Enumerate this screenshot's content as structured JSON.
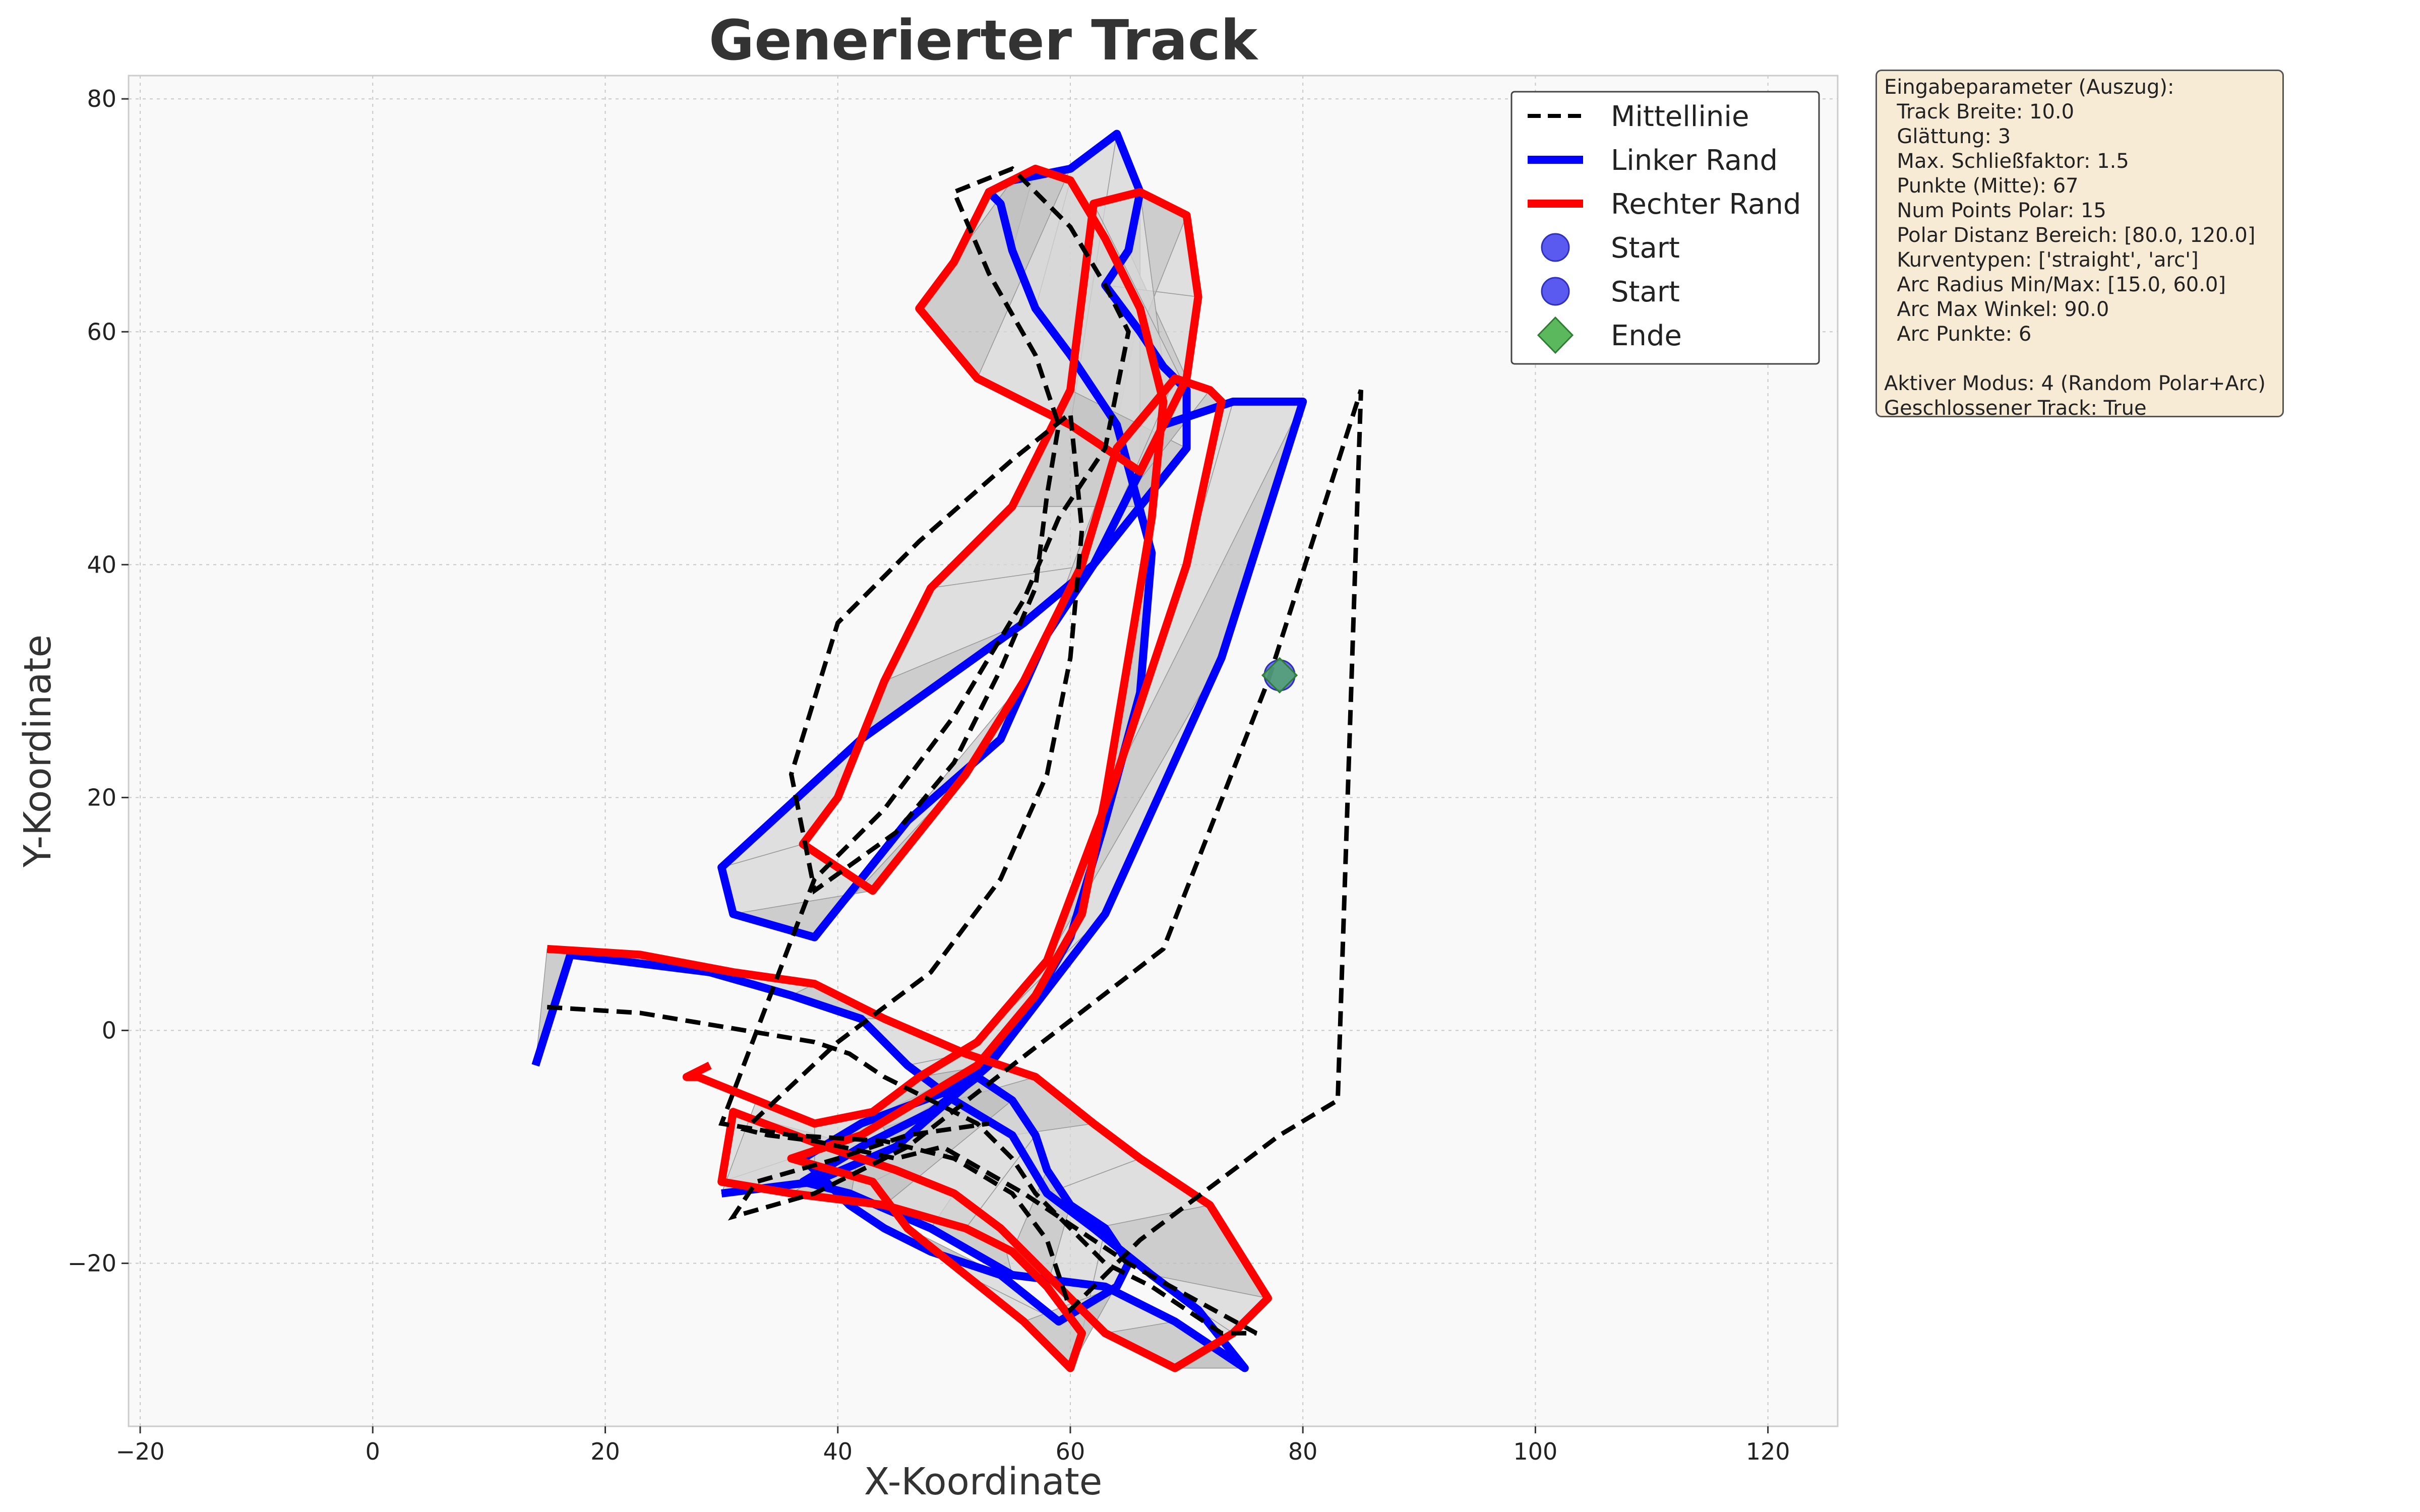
{
  "chart_data": {
    "type": "line",
    "title": "Generierter Track",
    "xlabel": "X-Koordinate",
    "ylabel": "Y-Koordinate",
    "xlim": [
      -21,
      126
    ],
    "ylim": [
      -34,
      82
    ],
    "xticks": [
      -20,
      0,
      20,
      40,
      60,
      80,
      100,
      120
    ],
    "yticks": [
      -20,
      0,
      20,
      40,
      60,
      80
    ],
    "grid": true,
    "legend_position": "top-right",
    "legend": [
      "Mittellinie",
      "Linker Rand",
      "Rechter Rand",
      "Start",
      "Start",
      "Ende"
    ],
    "colors": {
      "center": "#000000",
      "left": "#0000ff",
      "right": "#ff0000",
      "start": "#5a5af0",
      "end": "#4caf50",
      "track_fill": "#cfcfcf",
      "plot_bg": "#f9f9f9"
    },
    "series": [
      {
        "name": "Mittellinie",
        "x": [
          15,
          23,
          29,
          35,
          38,
          41,
          44,
          48,
          52,
          55,
          57,
          60,
          63,
          67,
          70,
          73,
          76,
          65,
          56,
          49,
          45,
          38,
          34,
          32,
          40,
          48,
          54,
          58,
          60,
          61,
          60,
          55,
          47,
          40,
          36,
          38,
          45,
          50,
          54,
          57,
          58,
          59,
          57,
          53,
          50,
          55,
          60,
          63,
          65,
          64,
          63,
          59,
          56,
          50,
          44,
          38,
          30,
          36,
          44,
          50,
          55,
          58,
          60,
          63,
          66,
          70,
          74,
          78,
          83,
          85,
          77,
          68,
          55,
          46,
          42,
          38,
          31,
          33,
          40,
          46,
          53
        ],
        "y": [
          2,
          1.5,
          0.5,
          -0.5,
          -1,
          -2,
          -4,
          -6,
          -8,
          -11,
          -14,
          -17,
          -20,
          -22,
          -24,
          -26,
          -26,
          -20,
          -14,
          -10,
          -11,
          -9.5,
          -9,
          -8.5,
          -1,
          5,
          13,
          22,
          32,
          43,
          53,
          49,
          42,
          35,
          22,
          12,
          17,
          23,
          31,
          38,
          46,
          52,
          58,
          65,
          72,
          74,
          69,
          64,
          60,
          55,
          50,
          44,
          37,
          27,
          19,
          13,
          -8,
          -9,
          -9.5,
          -11,
          -14,
          -18,
          -24,
          -21,
          -18,
          -15,
          -12,
          -9,
          -6,
          55,
          30,
          7,
          -3,
          -10,
          -12,
          -14,
          -16,
          -13,
          -11,
          -9,
          -8
        ]
      },
      {
        "name": "Linker Rand",
        "x": [
          14,
          17,
          29,
          36,
          42,
          46,
          50,
          55,
          58,
          62,
          67,
          71,
          75,
          69,
          63,
          55,
          48,
          41,
          37,
          42,
          48,
          52,
          55,
          57,
          58,
          60,
          63,
          65,
          64,
          59,
          54,
          48,
          44,
          41,
          37,
          42,
          50,
          56,
          60,
          63,
          66,
          67,
          64,
          60,
          57,
          55,
          54,
          53,
          55,
          60,
          64,
          66,
          65,
          63,
          66,
          68,
          70,
          70,
          66,
          62,
          56,
          42,
          30,
          31,
          38,
          46,
          54,
          58,
          62,
          65,
          68,
          74,
          80,
          73,
          63,
          53,
          45,
          38,
          30
        ],
        "y": [
          -3,
          6.5,
          5,
          3,
          1,
          -3,
          -6,
          -9,
          -14,
          -17,
          -21,
          -24,
          -29,
          -25,
          -22,
          -21,
          -17,
          -14,
          -13,
          -10,
          -7,
          -4,
          -6,
          -9,
          -12,
          -15,
          -17,
          -20,
          -22,
          -25,
          -21,
          -19,
          -17,
          -15,
          -11,
          -8,
          -5,
          1,
          8,
          18,
          29,
          41,
          52,
          58,
          62,
          67,
          71,
          72,
          73,
          74,
          77,
          72,
          67,
          64,
          60,
          57,
          55,
          50,
          45,
          40,
          35,
          25,
          14,
          10,
          8,
          18,
          25,
          34,
          40,
          46,
          52,
          54,
          54,
          32,
          10,
          -3,
          -10,
          -13,
          -14
        ]
      },
      {
        "name": "Rechter Rand",
        "x": [
          15,
          23,
          31,
          38,
          44,
          51,
          57,
          62,
          66,
          72,
          77,
          74,
          69,
          63,
          58,
          54,
          50,
          45,
          39,
          31,
          30,
          36,
          44,
          51,
          55,
          58,
          61,
          60,
          56,
          51,
          46,
          43,
          36,
          42,
          47,
          52,
          57,
          61,
          63,
          65,
          67,
          68,
          66,
          63,
          60,
          57,
          53,
          50,
          47,
          52,
          60,
          66,
          70,
          71,
          70,
          66,
          62,
          60,
          55,
          48,
          44,
          40,
          37,
          43,
          51,
          56,
          61,
          64,
          69,
          72,
          73,
          70,
          64,
          58,
          52,
          47,
          43,
          38,
          33,
          28,
          27,
          29
        ],
        "y": [
          7,
          6.5,
          5,
          4,
          1,
          -2,
          -4,
          -8,
          -11,
          -15,
          -23,
          -26,
          -29,
          -26,
          -21,
          -17,
          -14,
          -12,
          -10,
          -7,
          -13,
          -14,
          -15,
          -17,
          -19,
          -22,
          -26,
          -29,
          -25,
          -21,
          -17,
          -13,
          -11,
          -9,
          -6,
          -3,
          3,
          10,
          20,
          32,
          44,
          54,
          62,
          68,
          73,
          74,
          72,
          66,
          62,
          56,
          52,
          48,
          56,
          63,
          70,
          72,
          71,
          55,
          45,
          38,
          30,
          20,
          16,
          12,
          22,
          30,
          40,
          50,
          56,
          55,
          54,
          40,
          22,
          6,
          -1,
          -4,
          -7,
          -8,
          -6,
          -4,
          -4,
          -3
        ]
      }
    ],
    "markers": [
      {
        "label": "Start",
        "x": 78,
        "y": 30.5
      },
      {
        "label": "Start",
        "x": 78,
        "y": 30.5
      },
      {
        "label": "Ende",
        "x": 78,
        "y": 30.5
      }
    ]
  },
  "info_box": {
    "lines_group1": [
      "Eingabeparameter (Auszug):",
      "  Track Breite: 10.0",
      "  Glättung: 3",
      "  Max. Schließfaktor: 1.5",
      "  Punkte (Mitte): 67",
      "  Num Points Polar: 15",
      "  Polar Distanz Bereich: [80.0, 120.0]",
      "  Kurventypen: ['straight', 'arc']",
      "  Arc Radius Min/Max: [15.0, 60.0]",
      "  Arc Max Winkel: 90.0",
      "  Arc Punkte: 6"
    ],
    "lines_group2": [
      "Aktiver Modus: 4 (Random Polar+Arc)",
      "Geschlossener Track: True"
    ]
  }
}
